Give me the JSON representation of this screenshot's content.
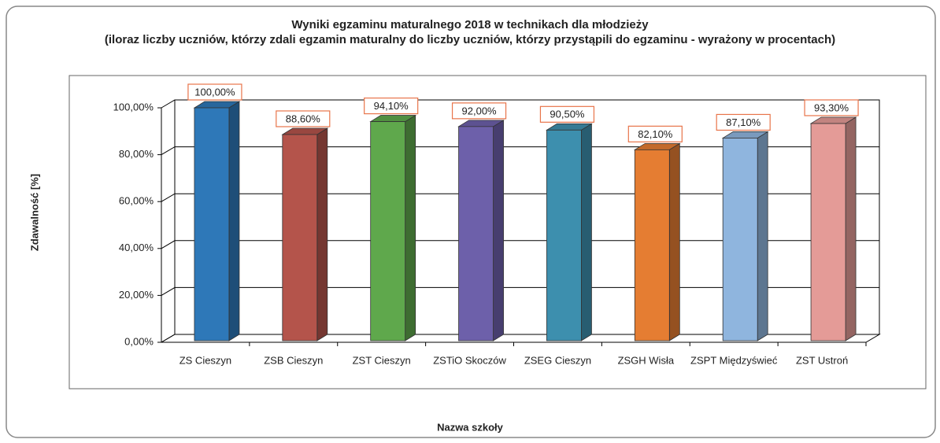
{
  "chart_data": {
    "type": "bar3d",
    "title": "Wyniki egzaminu maturalnego 2018 w technikach dla młodzieży",
    "subtitle": "(iloraz liczby uczniów, którzy zdali egzamin maturalny do liczby uczniów, którzy przystąpili do egzaminu - wyrażony w procentach)",
    "y_label": "Zdawalność [%]",
    "x_label": "Nazwa szkoły",
    "categories": [
      "ZS Cieszyn",
      "ZSB Cieszyn",
      "ZST Cieszyn",
      "ZSTiO Skoczów",
      "ZSEG Cieszyn",
      "ZSGH Wisła",
      "ZSPT Międzyświeć",
      "ZST Ustroń"
    ],
    "values": [
      100,
      88.6,
      94.1,
      92,
      90.5,
      82.1,
      87.1,
      93.3
    ],
    "value_labels": [
      "100,00%",
      "88,60%",
      "94,10%",
      "92,00%",
      "90,50%",
      "82,10%",
      "87,10%",
      "93,30%"
    ],
    "colors": [
      "#2e78b8",
      "#b4544b",
      "#5fa84c",
      "#6d60aa",
      "#3d8fae",
      "#e57d32",
      "#8fb5de",
      "#e49b97"
    ],
    "ylim": [
      0,
      100
    ],
    "yticks": [
      {
        "value": 0,
        "label": "0,00%"
      },
      {
        "value": 20,
        "label": "20,00%"
      },
      {
        "value": 40,
        "label": "40,00%"
      },
      {
        "value": 60,
        "label": "60,00%"
      },
      {
        "value": 80,
        "label": "80,00%"
      },
      {
        "value": 100,
        "label": "100,00%"
      }
    ],
    "grid": true
  }
}
